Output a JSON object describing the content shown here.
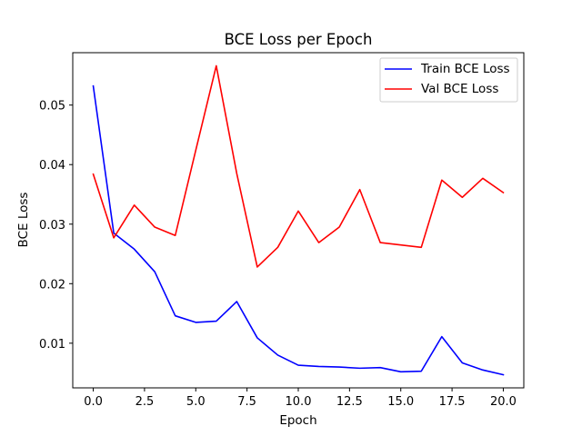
{
  "chart_data": {
    "type": "line",
    "title": "BCE Loss per Epoch",
    "xlabel": "Epoch",
    "ylabel": "BCE Loss",
    "xlim": [
      -1.0,
      21.0
    ],
    "ylim": [
      0.0025,
      0.0588
    ],
    "xticks": [
      0.0,
      2.5,
      5.0,
      7.5,
      10.0,
      12.5,
      15.0,
      17.5,
      20.0
    ],
    "xtick_labels": [
      "0.0",
      "2.5",
      "5.0",
      "7.5",
      "10.0",
      "12.5",
      "15.0",
      "17.5",
      "20.0"
    ],
    "yticks": [
      0.01,
      0.02,
      0.03,
      0.04,
      0.05
    ],
    "ytick_labels": [
      "0.01",
      "0.02",
      "0.03",
      "0.04",
      "0.05"
    ],
    "legend_position": "top-right",
    "x": [
      0,
      1,
      2,
      3,
      4,
      5,
      6,
      7,
      8,
      9,
      10,
      11,
      12,
      13,
      14,
      15,
      16,
      17,
      18,
      19,
      20
    ],
    "series": [
      {
        "name": "Train BCE Loss",
        "color": "#0000ff",
        "values": [
          0.0532,
          0.0285,
          0.0258,
          0.022,
          0.0146,
          0.0135,
          0.0137,
          0.017,
          0.0109,
          0.008,
          0.0063,
          0.0061,
          0.006,
          0.0058,
          0.0059,
          0.0052,
          0.0053,
          0.0111,
          0.0067,
          0.0055,
          0.0047
        ]
      },
      {
        "name": "Val BCE Loss",
        "color": "#ff0000",
        "values": [
          0.0384,
          0.0277,
          0.0332,
          0.0295,
          0.0281,
          0.0424,
          0.0566,
          0.0385,
          0.0228,
          0.0261,
          0.0322,
          0.0269,
          0.0295,
          0.0358,
          0.0269,
          0.0265,
          0.0261,
          0.0374,
          0.0345,
          0.0377,
          0.0353
        ]
      }
    ]
  }
}
